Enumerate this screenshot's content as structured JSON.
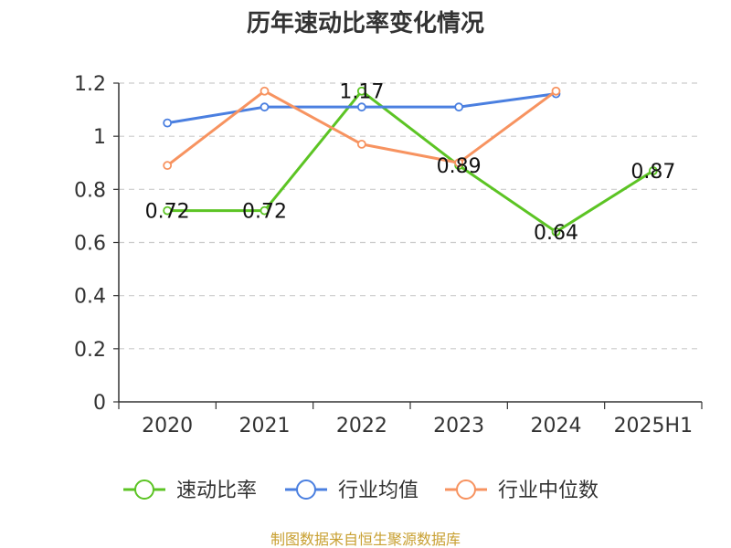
{
  "chart_data": {
    "type": "line",
    "title": "历年速动比率变化情况",
    "categories": [
      "2020",
      "2021",
      "2022",
      "2023",
      "2024",
      "2025H1"
    ],
    "ylim": [
      0,
      1.2
    ],
    "yticks": [
      "0",
      "0.2",
      "0.4",
      "0.6",
      "0.8",
      "1",
      "1.2"
    ],
    "grid": true,
    "legend_position": "bottom",
    "series": [
      {
        "name": "速动比率",
        "color": "#5cc424",
        "values": [
          0.72,
          0.72,
          1.17,
          0.89,
          0.64,
          0.87
        ],
        "labels": [
          "0.72",
          "0.72",
          "1.17",
          "0.89",
          "0.64",
          "0.87"
        ]
      },
      {
        "name": "行业均值",
        "color": "#4a7fe0",
        "values": [
          1.05,
          1.11,
          1.11,
          1.11,
          1.16,
          null
        ]
      },
      {
        "name": "行业中位数",
        "color": "#f79360",
        "values": [
          0.89,
          1.17,
          0.97,
          0.9,
          1.17,
          null
        ]
      }
    ]
  },
  "source": "制图数据来自恒生聚源数据库"
}
